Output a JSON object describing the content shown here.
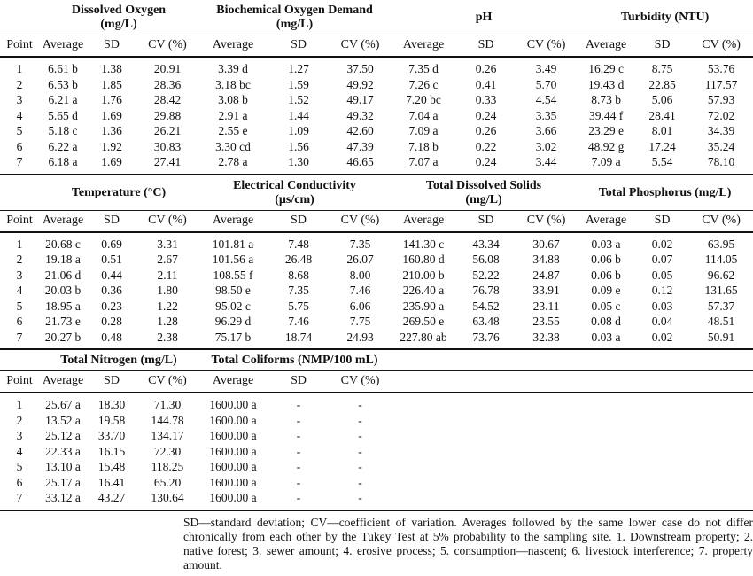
{
  "page": {
    "background_color": "#ffffff",
    "text_color": "#111111",
    "rule_color": "#111111"
  },
  "table": {
    "point_label": "Point",
    "sub_headers": [
      "Average",
      "SD",
      "CV (%)"
    ],
    "sections": [
      {
        "groups": [
          {
            "id": "dissolved-oxygen",
            "title_lines": [
              "Dissolved Oxygen",
              "(mg/L)"
            ]
          },
          {
            "id": "biochemical-oxygen-demand",
            "title_lines": [
              "Biochemical Oxygen Demand",
              "(mg/L)"
            ]
          },
          {
            "id": "ph",
            "title_lines": [
              "pH"
            ]
          },
          {
            "id": "turbidity",
            "title_lines": [
              "Turbidity (NTU)"
            ]
          }
        ],
        "rows": [
          {
            "point": "1",
            "values": [
              [
                "6.61 b",
                "1.38",
                "20.91"
              ],
              [
                "3.39 d",
                "1.27",
                "37.50"
              ],
              [
                "7.35 d",
                "0.26",
                "3.49"
              ],
              [
                "16.29 c",
                "8.75",
                "53.76"
              ]
            ]
          },
          {
            "point": "2",
            "values": [
              [
                "6.53 b",
                "1.85",
                "28.36"
              ],
              [
                "3.18 bc",
                "1.59",
                "49.92"
              ],
              [
                "7.26 c",
                "0.41",
                "5.70"
              ],
              [
                "19.43 d",
                "22.85",
                "117.57"
              ]
            ]
          },
          {
            "point": "3",
            "values": [
              [
                "6.21 a",
                "1.76",
                "28.42"
              ],
              [
                "3.08 b",
                "1.52",
                "49.17"
              ],
              [
                "7.20 bc",
                "0.33",
                "4.54"
              ],
              [
                "8.73 b",
                "5.06",
                "57.93"
              ]
            ]
          },
          {
            "point": "4",
            "values": [
              [
                "5.65 d",
                "1.69",
                "29.88"
              ],
              [
                "2.91 a",
                "1.44",
                "49.32"
              ],
              [
                "7.04 a",
                "0.24",
                "3.35"
              ],
              [
                "39.44 f",
                "28.41",
                "72.02"
              ]
            ]
          },
          {
            "point": "5",
            "values": [
              [
                "5.18 c",
                "1.36",
                "26.21"
              ],
              [
                "2.55 e",
                "1.09",
                "42.60"
              ],
              [
                "7.09 a",
                "0.26",
                "3.66"
              ],
              [
                "23.29 e",
                "8.01",
                "34.39"
              ]
            ]
          },
          {
            "point": "6",
            "values": [
              [
                "6.22 a",
                "1.92",
                "30.83"
              ],
              [
                "3.30 cd",
                "1.56",
                "47.39"
              ],
              [
                "7.18 b",
                "0.22",
                "3.02"
              ],
              [
                "48.92 g",
                "17.24",
                "35.24"
              ]
            ]
          },
          {
            "point": "7",
            "values": [
              [
                "6.18 a",
                "1.69",
                "27.41"
              ],
              [
                "2.78 a",
                "1.30",
                "46.65"
              ],
              [
                "7.07 a",
                "0.24",
                "3.44"
              ],
              [
                "7.09 a",
                "5.54",
                "78.10"
              ]
            ]
          }
        ]
      },
      {
        "groups": [
          {
            "id": "temperature",
            "title_lines": [
              "Temperature (°C)"
            ]
          },
          {
            "id": "electrical-conductivity",
            "title_lines": [
              "Electrical Conductivity",
              "(µs/cm)"
            ]
          },
          {
            "id": "total-dissolved-solids",
            "title_lines": [
              "Total Dissolved Solids",
              "(mg/L)"
            ]
          },
          {
            "id": "total-phosphorus",
            "title_lines": [
              "Total Phosphorus (mg/L)"
            ]
          }
        ],
        "rows": [
          {
            "point": "1",
            "values": [
              [
                "20.68 c",
                "0.69",
                "3.31"
              ],
              [
                "101.81 a",
                "7.48",
                "7.35"
              ],
              [
                "141.30 c",
                "43.34",
                "30.67"
              ],
              [
                "0.03 a",
                "0.02",
                "63.95"
              ]
            ]
          },
          {
            "point": "2",
            "values": [
              [
                "19.18 a",
                "0.51",
                "2.67"
              ],
              [
                "101.56 a",
                "26.48",
                "26.07"
              ],
              [
                "160.80 d",
                "56.08",
                "34.88"
              ],
              [
                "0.06 b",
                "0.07",
                "114.05"
              ]
            ]
          },
          {
            "point": "3",
            "values": [
              [
                "21.06 d",
                "0.44",
                "2.11"
              ],
              [
                "108.55 f",
                "8.68",
                "8.00"
              ],
              [
                "210.00 b",
                "52.22",
                "24.87"
              ],
              [
                "0.06 b",
                "0.05",
                "96.62"
              ]
            ]
          },
          {
            "point": "4",
            "values": [
              [
                "20.03 b",
                "0.36",
                "1.80"
              ],
              [
                "98.50 e",
                "7.35",
                "7.46"
              ],
              [
                "226.40 a",
                "76.78",
                "33.91"
              ],
              [
                "0.09 e",
                "0.12",
                "131.65"
              ]
            ]
          },
          {
            "point": "5",
            "values": [
              [
                "18.95 a",
                "0.23",
                "1.22"
              ],
              [
                "95.02 c",
                "5.75",
                "6.06"
              ],
              [
                "235.90 a",
                "54.52",
                "23.11"
              ],
              [
                "0.05 c",
                "0.03",
                "57.37"
              ]
            ]
          },
          {
            "point": "6",
            "values": [
              [
                "21.73 e",
                "0.28",
                "1.28"
              ],
              [
                "96.29 d",
                "7.46",
                "7.75"
              ],
              [
                "269.50 e",
                "63.48",
                "23.55"
              ],
              [
                "0.08 d",
                "0.04",
                "48.51"
              ]
            ]
          },
          {
            "point": "7",
            "values": [
              [
                "20.27 b",
                "0.48",
                "2.38"
              ],
              [
                "75.17 b",
                "18.74",
                "24.93"
              ],
              [
                "227.80 ab",
                "73.76",
                "32.38"
              ],
              [
                "0.03 a",
                "0.02",
                "50.91"
              ]
            ]
          }
        ]
      },
      {
        "groups": [
          {
            "id": "total-nitrogen",
            "title_lines": [
              "Total Nitrogen (mg/L)"
            ]
          },
          {
            "id": "total-coliforms",
            "title_lines": [
              "Total Coliforms (NMP/100 mL)"
            ]
          }
        ],
        "rows": [
          {
            "point": "1",
            "values": [
              [
                "25.67 a",
                "18.30",
                "71.30"
              ],
              [
                "1600.00 a",
                "-",
                "-"
              ]
            ]
          },
          {
            "point": "2",
            "values": [
              [
                "13.52 a",
                "19.58",
                "144.78"
              ],
              [
                "1600.00 a",
                "-",
                "-"
              ]
            ]
          },
          {
            "point": "3",
            "values": [
              [
                "25.12 a",
                "33.70",
                "134.17"
              ],
              [
                "1600.00 a",
                "-",
                "-"
              ]
            ]
          },
          {
            "point": "4",
            "values": [
              [
                "22.33 a",
                "16.15",
                "72.30"
              ],
              [
                "1600.00 a",
                "-",
                "-"
              ]
            ]
          },
          {
            "point": "5",
            "values": [
              [
                "13.10 a",
                "15.48",
                "118.25"
              ],
              [
                "1600.00 a",
                "-",
                "-"
              ]
            ]
          },
          {
            "point": "6",
            "values": [
              [
                "25.17 a",
                "16.41",
                "65.20"
              ],
              [
                "1600.00 a",
                "-",
                "-"
              ]
            ]
          },
          {
            "point": "7",
            "values": [
              [
                "33.12 a",
                "43.27",
                "130.64"
              ],
              [
                "1600.00 a",
                "-",
                "-"
              ]
            ]
          }
        ]
      }
    ]
  },
  "footnote": {
    "text": "SD—standard deviation; CV—coefficient of variation. Averages followed by the same lower case do not differ chronically from each other by the Tukey Test at 5% probability to the sampling site. 1. Downstream property; 2. native forest; 3. sewer amount; 4. erosive process; 5. consumption—nascent; 6. livestock interference; 7. property amount."
  }
}
